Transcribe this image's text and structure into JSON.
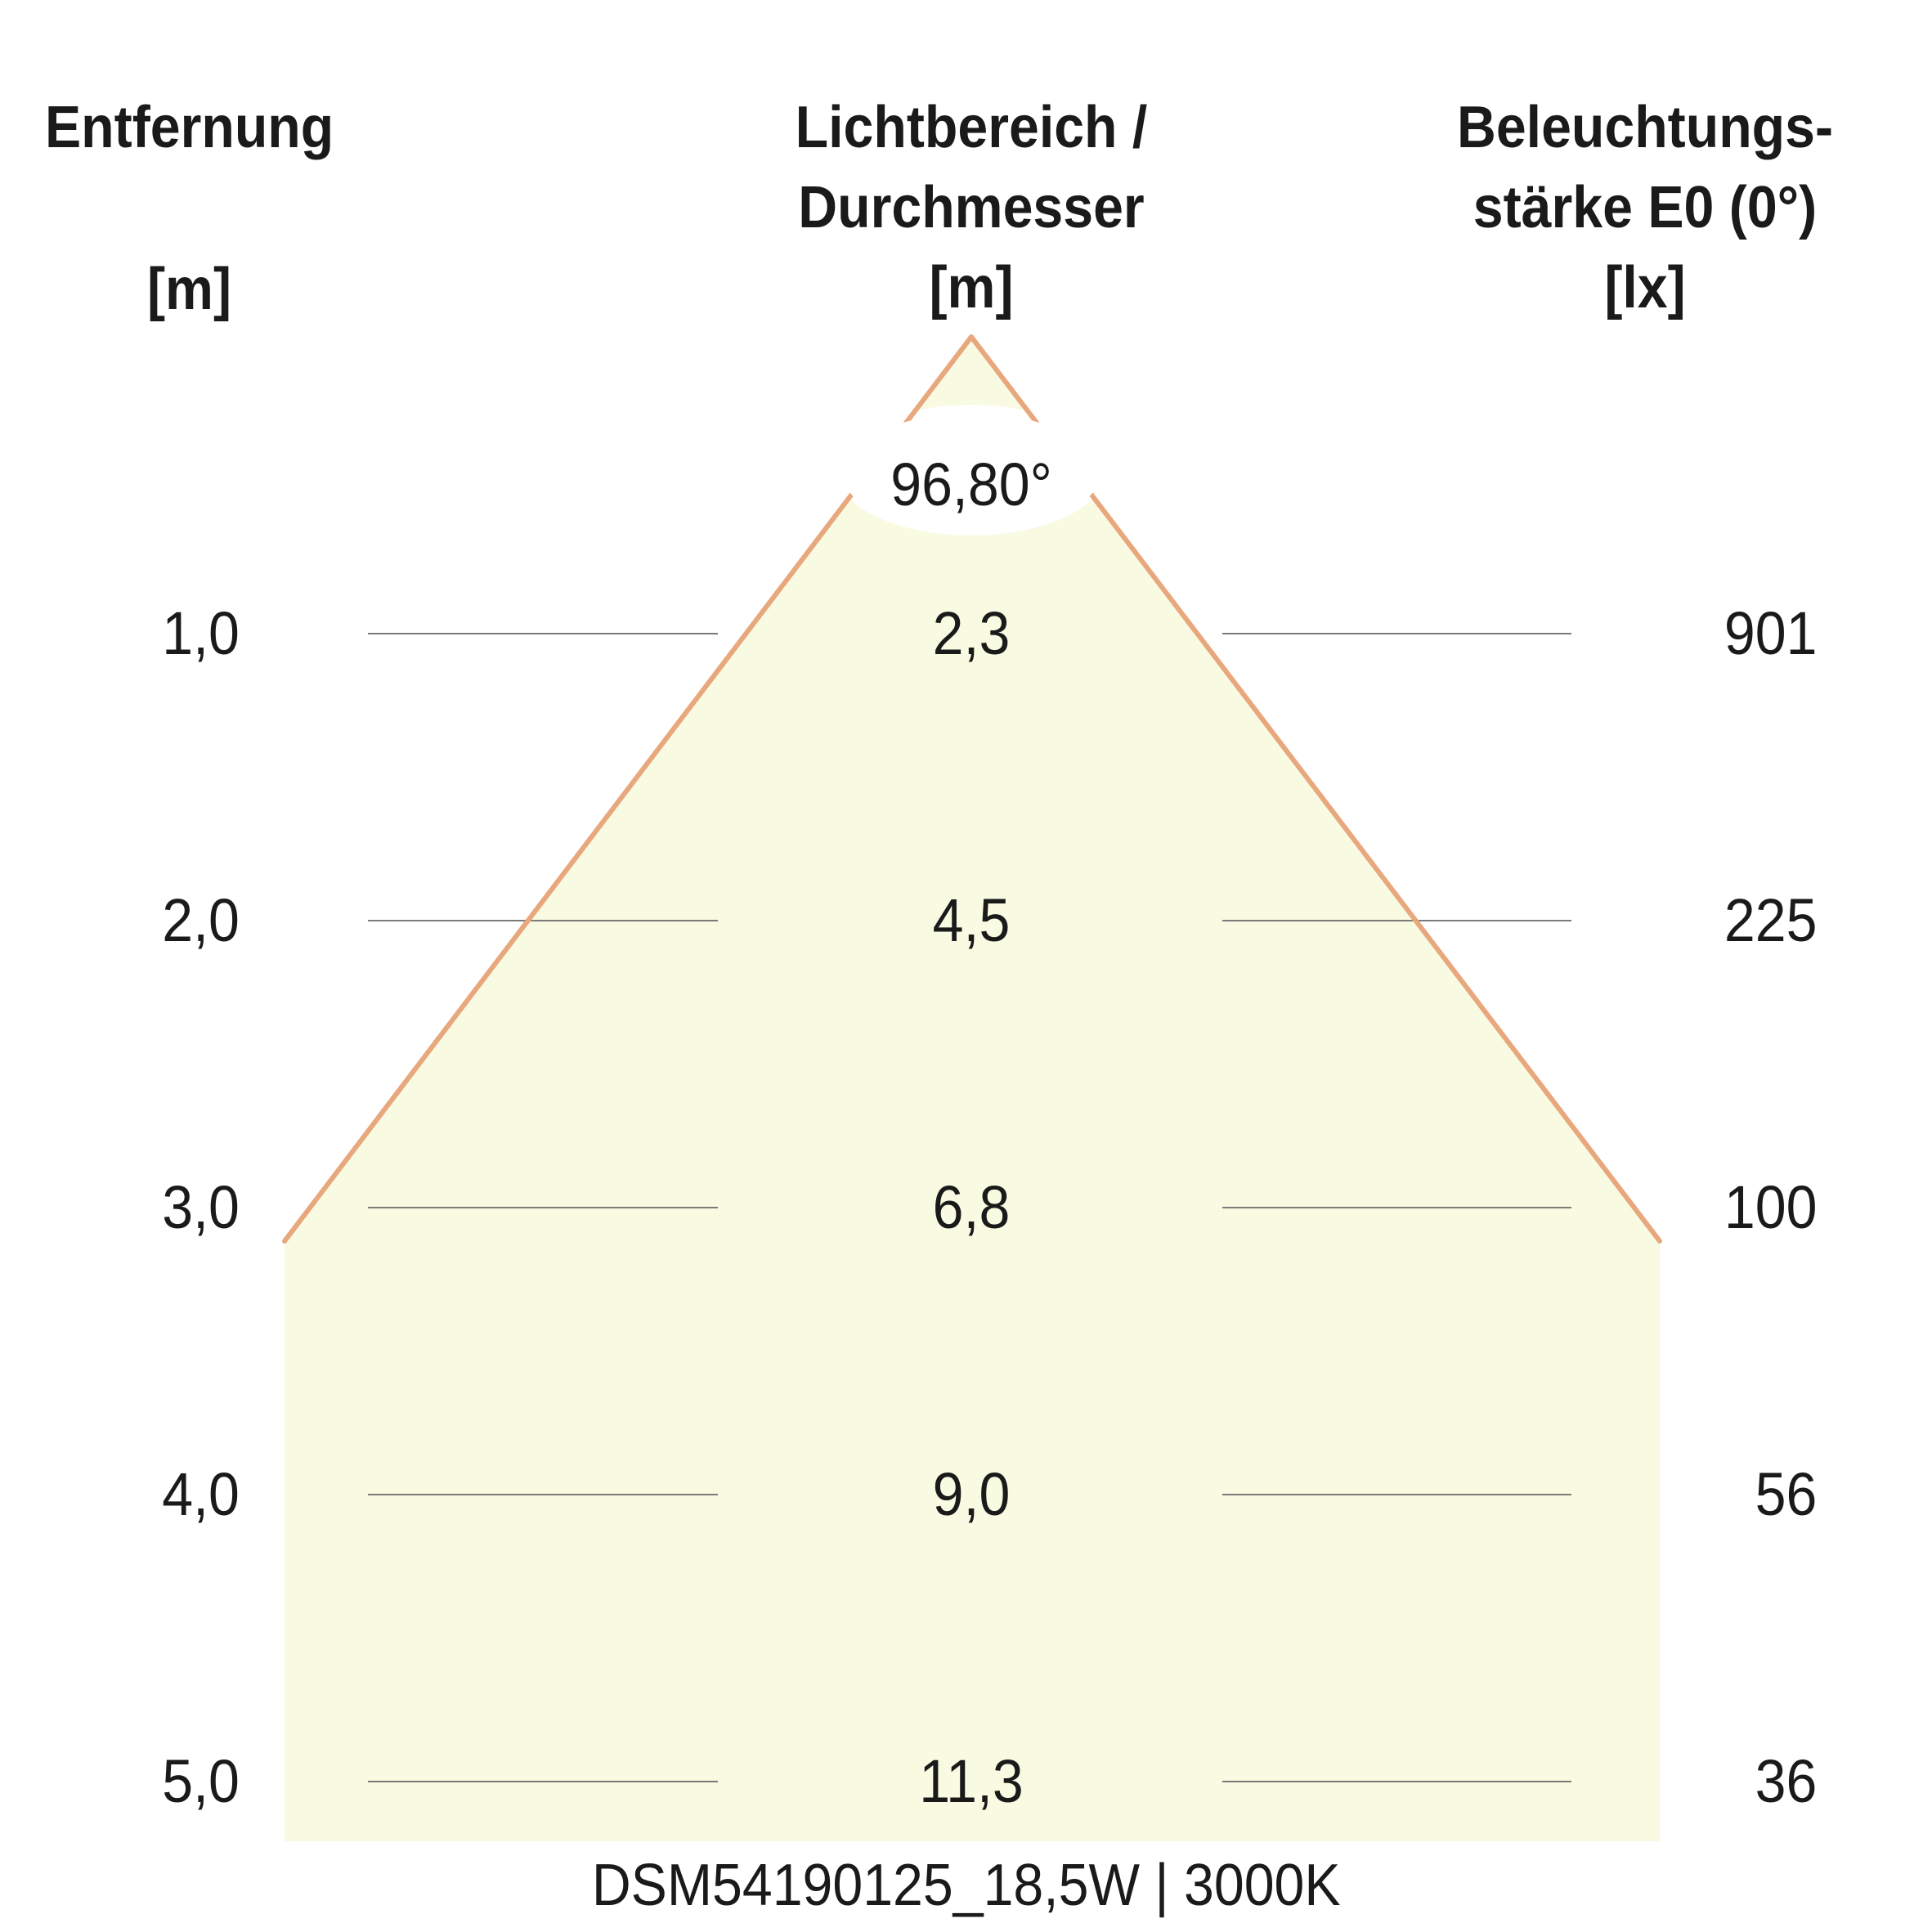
{
  "headers": {
    "left": {
      "title": "Entfernung",
      "unit": "[m]"
    },
    "middle": {
      "line1": "Lichtbereich /",
      "line2": "Durchmesser",
      "unit": "[m]"
    },
    "right": {
      "line1": "Beleuchtungs-",
      "line2": "stärke E0 (0°)",
      "unit": "[lx]"
    }
  },
  "beam_angle": "96,80°",
  "rows": [
    {
      "distance": "1,0",
      "diameter": "2,3",
      "illuminance": "901"
    },
    {
      "distance": "2,0",
      "diameter": "4,5",
      "illuminance": "225"
    },
    {
      "distance": "3,0",
      "diameter": "6,8",
      "illuminance": "100"
    },
    {
      "distance": "4,0",
      "diameter": "9,0",
      "illuminance": "56"
    },
    {
      "distance": "5,0",
      "diameter": "11,3",
      "illuminance": "36"
    }
  ],
  "footer": "DSM54190125_18,5W | 3000K",
  "colors": {
    "beam_fill": "#f8fae1",
    "beam_edge": "#e8a77c",
    "grid_line": "#7a7a7a",
    "text": "#1a1a1a"
  }
}
